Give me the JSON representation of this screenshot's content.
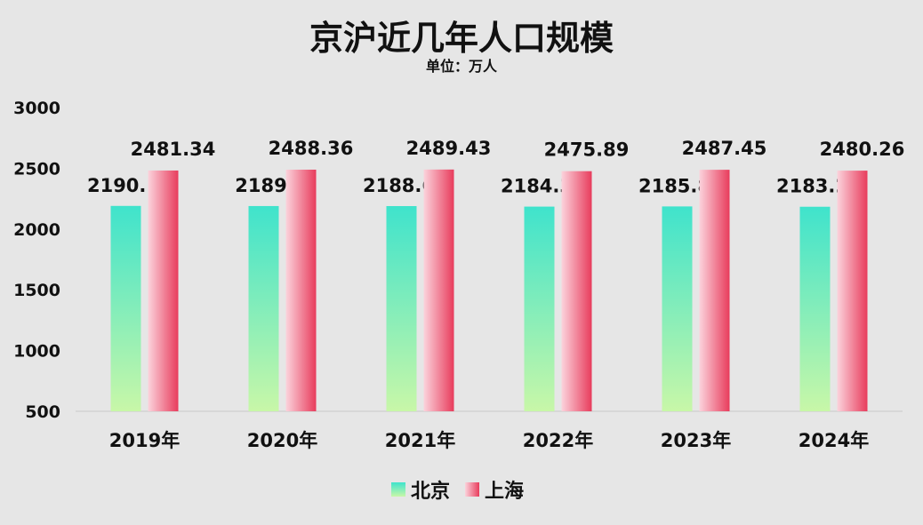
{
  "chart_data": {
    "type": "bar",
    "title": "京沪近几年人口规模",
    "subtitle": "单位：万人",
    "categories": [
      "2019年",
      "2020年",
      "2021年",
      "2022年",
      "2023年",
      "2024年"
    ],
    "series": [
      {
        "name": "北京",
        "values": [
          2190.1,
          2189,
          2188.6,
          2184.3,
          2185.8,
          2183.2
        ]
      },
      {
        "name": "上海",
        "values": [
          2481.34,
          2488.36,
          2489.43,
          2475.89,
          2487.45,
          2480.26
        ]
      }
    ],
    "yticks": [
      500,
      1000,
      1500,
      2000,
      2500,
      3000
    ],
    "ylim": [
      500,
      3000
    ],
    "grid": false,
    "legend_position": "bottom-center",
    "colors": {
      "北京_top": "#3fe3cc",
      "北京_bottom": "#c8f7a8",
      "上海_light": "#fbd3dc",
      "上海_dark": "#e83c5c"
    }
  }
}
